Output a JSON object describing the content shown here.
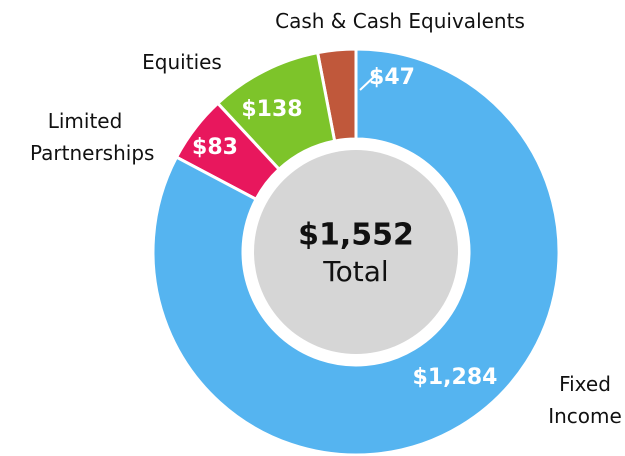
{
  "chart_data": {
    "type": "donut",
    "categories": [
      "Fixed Income",
      "Limited Partnerships",
      "Equities",
      "Cash & Cash Equivalents"
    ],
    "values": [
      1284,
      83,
      138,
      47
    ],
    "value_labels": [
      "$1,284",
      "$83",
      "$138",
      "$47"
    ],
    "colors": [
      "#55b4f0",
      "#e8175d",
      "#7dc42a",
      "#c0583b"
    ],
    "center_value": "$1,552",
    "center_label": "Total"
  }
}
